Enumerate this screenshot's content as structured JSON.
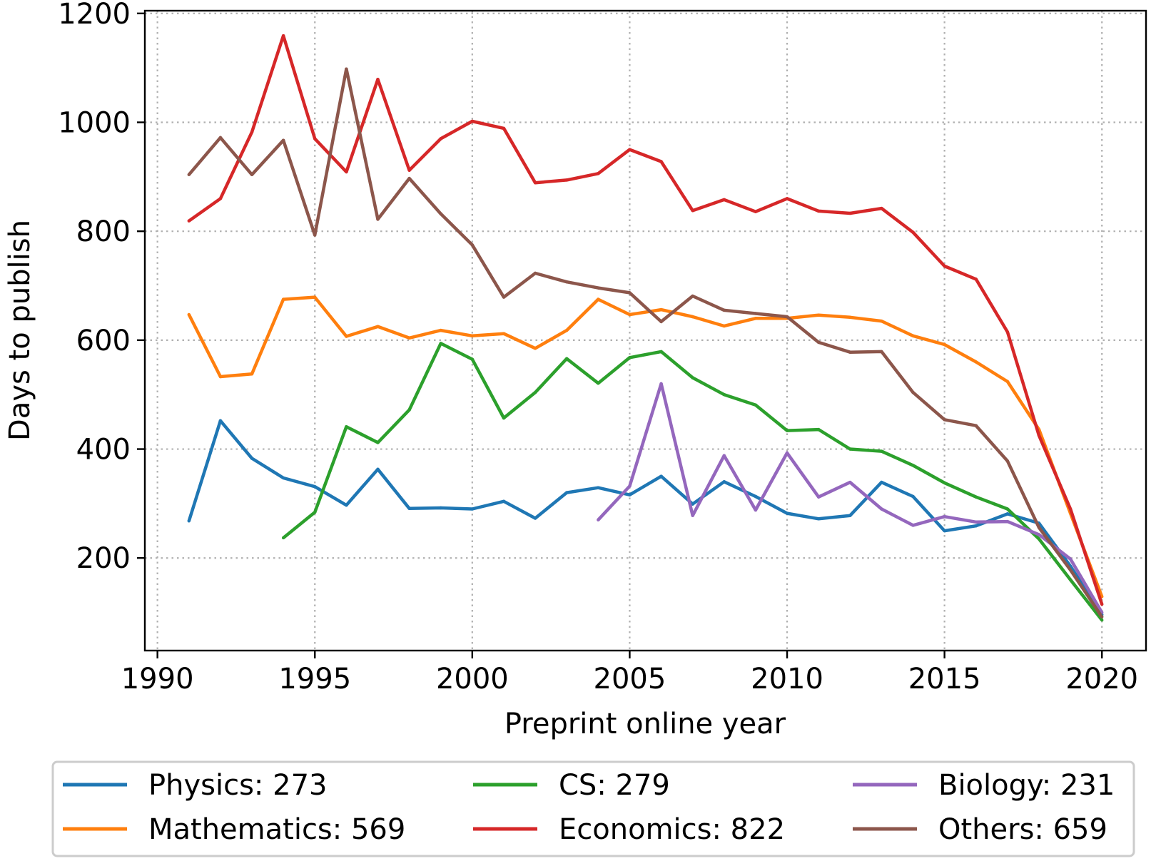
{
  "chart_data": {
    "type": "line",
    "title": "",
    "xlabel": "Preprint online year",
    "ylabel": "Days to publish",
    "xlim": [
      1989.6,
      2021.4
    ],
    "ylim": [
      30,
      1205
    ],
    "xticks": [
      1990,
      1995,
      2000,
      2005,
      2010,
      2015,
      2020
    ],
    "yticks": [
      200,
      400,
      600,
      800,
      1000,
      1200
    ],
    "xtick_labels": [
      "1990",
      "1995",
      "2000",
      "2005",
      "2010",
      "2015",
      "2020"
    ],
    "ytick_labels": [
      "200",
      "400",
      "600",
      "800",
      "1000",
      "1200"
    ],
    "grid": true,
    "legend_position": "below",
    "series": [
      {
        "name": "Physics",
        "legend_label": "Physics: 273",
        "color": "#1f77b4",
        "x": [
          1991,
          1992,
          1993,
          1994,
          1995,
          1996,
          1997,
          1998,
          1999,
          2000,
          2001,
          2002,
          2003,
          2004,
          2005,
          2006,
          2007,
          2008,
          2009,
          2010,
          2011,
          2012,
          2013,
          2014,
          2015,
          2016,
          2017,
          2018,
          2019,
          2020
        ],
        "values": [
          268,
          452,
          383,
          347,
          331,
          297,
          363,
          291,
          292,
          290,
          304,
          273,
          320,
          329,
          316,
          350,
          299,
          340,
          313,
          282,
          272,
          278,
          339,
          313,
          250,
          259,
          281,
          264,
          185,
          96
        ]
      },
      {
        "name": "Mathematics",
        "legend_label": "Mathematics: 569",
        "color": "#ff7f0e",
        "x": [
          1991,
          1992,
          1993,
          1994,
          1995,
          1996,
          1997,
          1998,
          1999,
          2000,
          2001,
          2002,
          2003,
          2004,
          2005,
          2006,
          2007,
          2008,
          2009,
          2010,
          2011,
          2012,
          2013,
          2014,
          2015,
          2016,
          2017,
          2018,
          2019,
          2020
        ],
        "values": [
          647,
          533,
          538,
          675,
          679,
          607,
          625,
          604,
          618,
          608,
          612,
          585,
          618,
          675,
          647,
          656,
          643,
          626,
          640,
          640,
          646,
          642,
          635,
          608,
          592,
          560,
          524,
          436,
          282,
          129
        ]
      },
      {
        "name": "CS",
        "legend_label": "CS: 279",
        "color": "#2ca02c",
        "x": [
          1994,
          1995,
          1996,
          1997,
          1998,
          1999,
          2000,
          2001,
          2002,
          2003,
          2004,
          2005,
          2006,
          2007,
          2008,
          2009,
          2010,
          2011,
          2012,
          2013,
          2014,
          2015,
          2016,
          2017,
          2018,
          2019,
          2020
        ],
        "values": [
          237,
          284,
          441,
          412,
          472,
          594,
          565,
          457,
          504,
          566,
          521,
          568,
          579,
          531,
          500,
          481,
          434,
          436,
          400,
          396,
          370,
          338,
          312,
          290,
          235,
          160,
          86
        ]
      },
      {
        "name": "Economics",
        "legend_label": "Economics: 822",
        "color": "#d62728",
        "x": [
          1991,
          1992,
          1993,
          1994,
          1995,
          1996,
          1997,
          1998,
          1999,
          2000,
          2001,
          2002,
          2003,
          2004,
          2005,
          2006,
          2007,
          2008,
          2009,
          2010,
          2011,
          2012,
          2013,
          2014,
          2015,
          2016,
          2017,
          2018,
          2019,
          2020
        ],
        "values": [
          819,
          860,
          982,
          1159,
          970,
          909,
          1079,
          912,
          970,
          1002,
          989,
          889,
          894,
          906,
          950,
          928,
          838,
          858,
          836,
          860,
          837,
          833,
          842,
          798,
          736,
          712,
          615,
          425,
          290,
          115
        ]
      },
      {
        "name": "Biology",
        "legend_label": "Biology: 231",
        "color": "#9467bd",
        "x": [
          2004,
          2005,
          2006,
          2007,
          2008,
          2009,
          2010,
          2011,
          2012,
          2013,
          2014,
          2015,
          2016,
          2017,
          2018,
          2019,
          2020
        ],
        "values": [
          270,
          332,
          520,
          278,
          388,
          288,
          393,
          312,
          339,
          290,
          260,
          276,
          266,
          267,
          243,
          198,
          100
        ]
      },
      {
        "name": "Others",
        "legend_label": "Others: 659",
        "color": "#8c564b",
        "x": [
          1991,
          1992,
          1993,
          1994,
          1995,
          1996,
          1997,
          1998,
          1999,
          2000,
          2001,
          2002,
          2003,
          2004,
          2005,
          2006,
          2007,
          2008,
          2009,
          2010,
          2011,
          2012,
          2013,
          2014,
          2015,
          2016,
          2017,
          2018,
          2019,
          2020
        ],
        "values": [
          904,
          972,
          904,
          967,
          793,
          1098,
          822,
          897,
          832,
          775,
          679,
          723,
          707,
          696,
          687,
          634,
          681,
          655,
          649,
          643,
          596,
          578,
          579,
          504,
          454,
          443,
          378,
          256,
          178,
          92
        ]
      }
    ]
  }
}
